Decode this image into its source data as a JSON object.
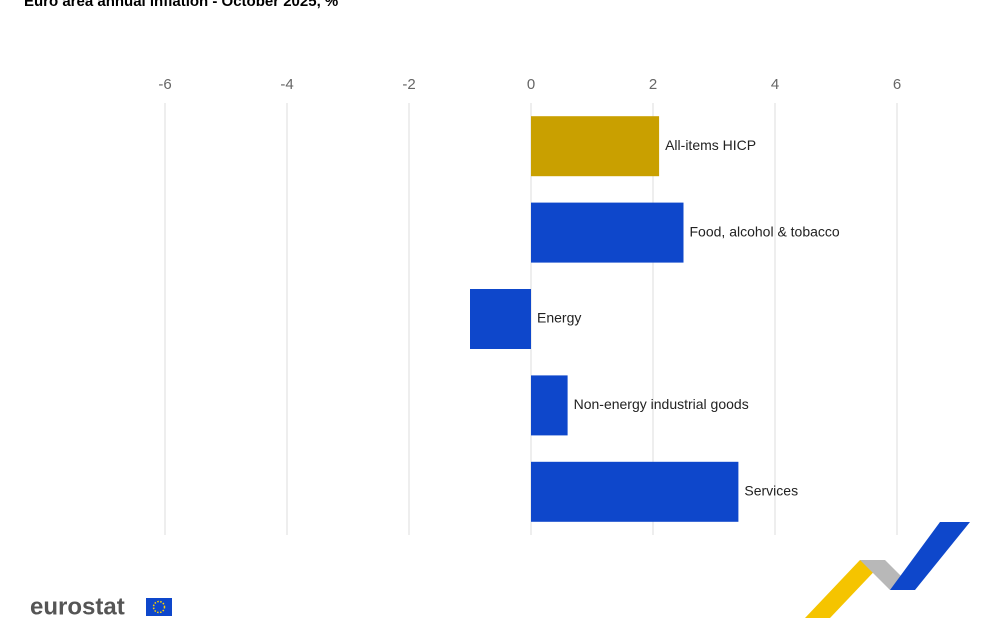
{
  "chart_data": {
    "type": "bar",
    "orientation": "horizontal",
    "title": "Euro area annual inflation - October 2025, %",
    "categories": [
      "All-items HICP",
      "Food, alcohol & tobacco",
      "Energy",
      "Non-energy industrial goods",
      "Services"
    ],
    "values": [
      2.1,
      2.5,
      -1.0,
      0.6,
      3.4
    ],
    "colors": [
      "#c9a000",
      "#0e47cb",
      "#0e47cb",
      "#0e47cb",
      "#0e47cb"
    ],
    "xlim": [
      -6,
      6
    ],
    "xticks": [
      -6,
      -4,
      -2,
      0,
      2,
      4,
      6
    ],
    "grid": true
  },
  "logo_text": "eurostat"
}
